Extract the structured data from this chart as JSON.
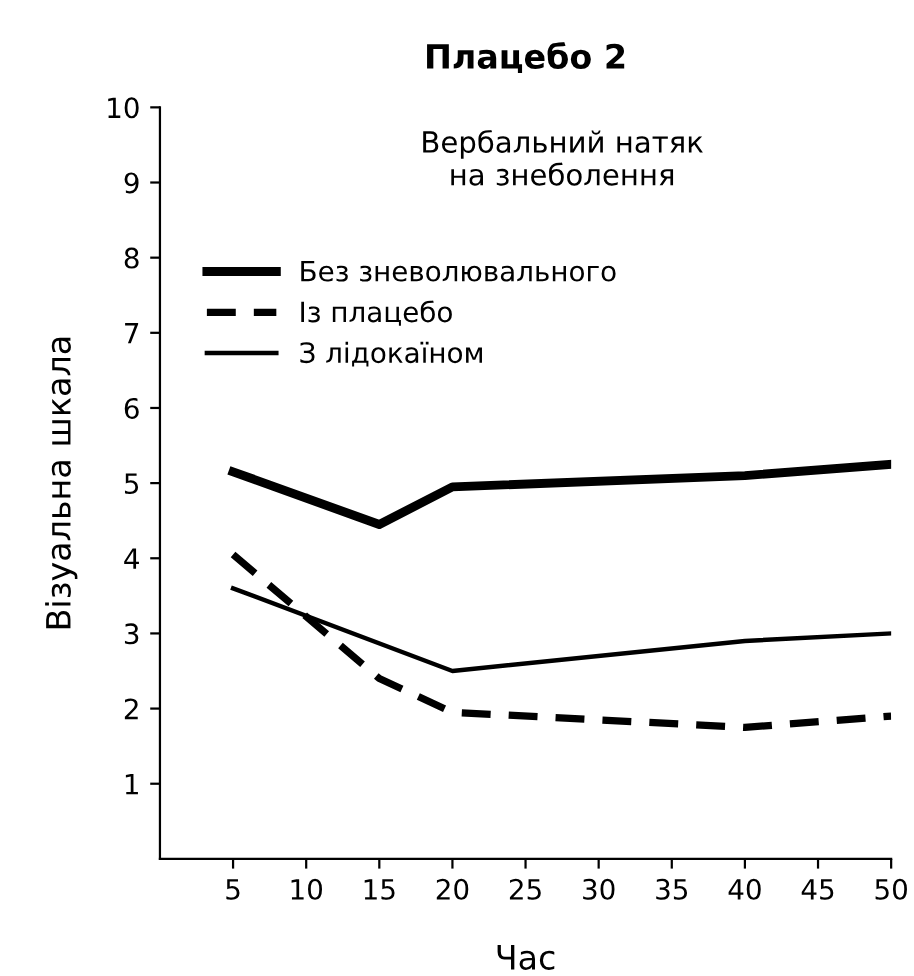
{
  "chart_data": {
    "type": "line",
    "title": "Плацебо 2",
    "xlabel": "Час",
    "ylabel": "Візуальна шкала",
    "annotations": [
      "Вербальний натяк\nна знеболення"
    ],
    "xlim": [
      0,
      50
    ],
    "ylim": [
      0,
      10
    ],
    "xticks": [
      5,
      10,
      15,
      20,
      25,
      30,
      35,
      40,
      45,
      50
    ],
    "yticks": [
      1,
      2,
      3,
      4,
      5,
      6,
      7,
      8,
      9,
      10
    ],
    "legend": "top left",
    "grid": false,
    "marker": "none",
    "series": [
      {
        "name": "Без зневолювального",
        "color": "#000000",
        "line_style": "solid",
        "x": [
          5,
          15,
          20,
          40,
          50
        ],
        "values": [
          5.15,
          4.45,
          4.95,
          5.1,
          5.25
        ]
      },
      {
        "name": "Із плацебо",
        "color": "#000000",
        "line_style": "dashed",
        "x": [
          5,
          15,
          20,
          40,
          50
        ],
        "values": [
          4.05,
          2.4,
          1.95,
          1.75,
          1.9
        ]
      },
      {
        "name": "З лідокаїном",
        "color": "#000000",
        "line_style": "solid",
        "x": [
          5,
          20,
          40,
          50
        ],
        "values": [
          3.6,
          2.5,
          2.9,
          3.0
        ]
      }
    ]
  }
}
